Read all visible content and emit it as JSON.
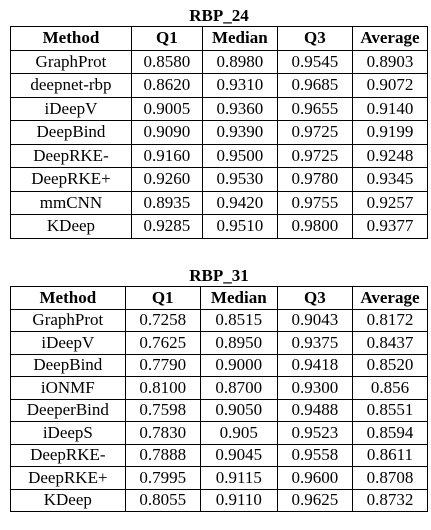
{
  "tables": [
    {
      "title": "RBP_24",
      "headers": [
        "Method",
        "Q1",
        "Median",
        "Q3",
        "Average"
      ],
      "rows": [
        [
          "GraphProt",
          "0.8580",
          "0.8980",
          "0.9545",
          "0.8903"
        ],
        [
          "deepnet-rbp",
          "0.8620",
          "0.9310",
          "0.9685",
          "0.9072"
        ],
        [
          "iDeepV",
          "0.9005",
          "0.9360",
          "0.9655",
          "0.9140"
        ],
        [
          "DeepBind",
          "0.9090",
          "0.9390",
          "0.9725",
          "0.9199"
        ],
        [
          "DeepRKE-",
          "0.9160",
          "0.9500",
          "0.9725",
          "0.9248"
        ],
        [
          "DeepRKE+",
          "0.9260",
          "0.9530",
          "0.9780",
          "0.9345"
        ],
        [
          "mmCNN",
          "0.8935",
          "0.9420",
          "0.9755",
          "0.9257"
        ],
        [
          "KDeep",
          "0.9285",
          "0.9510",
          "0.9800",
          "0.9377"
        ]
      ]
    },
    {
      "title": "RBP_31",
      "headers": [
        "Method",
        "Q1",
        "Median",
        "Q3",
        "Average"
      ],
      "rows": [
        [
          "GraphProt",
          "0.7258",
          "0.8515",
          "0.9043",
          "0.8172"
        ],
        [
          "iDeepV",
          "0.7625",
          "0.8950",
          "0.9375",
          "0.8437"
        ],
        [
          "DeepBind",
          "0.7790",
          "0.9000",
          "0.9418",
          "0.8520"
        ],
        [
          "iONMF",
          "0.8100",
          "0.8700",
          "0.9300",
          "0.856"
        ],
        [
          "DeeperBind",
          "0.7598",
          "0.9050",
          "0.9488",
          "0.8551"
        ],
        [
          "iDeepS",
          "0.7830",
          "0.905",
          "0.9523",
          "0.8594"
        ],
        [
          "DeepRKE-",
          "0.7888",
          "0.9045",
          "0.9558",
          "0.8611"
        ],
        [
          "DeepRKE+",
          "0.7995",
          "0.9115",
          "0.9600",
          "0.8708"
        ],
        [
          "KDeep",
          "0.8055",
          "0.9110",
          "0.9625",
          "0.8732"
        ]
      ]
    }
  ]
}
